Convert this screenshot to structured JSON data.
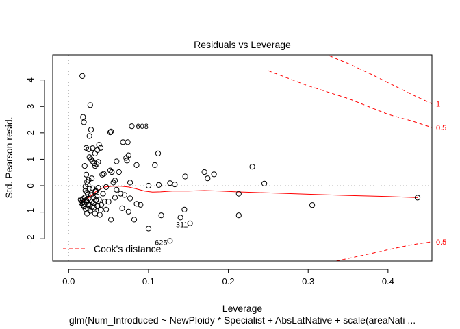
{
  "chart_data": {
    "type": "scatter",
    "title": "Residuals vs Leverage",
    "xlabel": "Leverage",
    "ylabel": "Std. Pearson resid.",
    "subtitle": "glm(Num_Introduced ~ NewPloidy * Specialist + AbsLatNative + scale(areaNati ...",
    "xlim": [
      -0.02,
      0.455
    ],
    "ylim": [
      -2.85,
      4.95
    ],
    "x_ticks": [
      0.0,
      0.1,
      0.2,
      0.3,
      0.4
    ],
    "x_tick_labels": [
      "0.0",
      "0.1",
      "0.2",
      "0.3",
      "0.4"
    ],
    "y_ticks": [
      -2,
      -1,
      0,
      1,
      2,
      3,
      4
    ],
    "y_tick_labels": [
      "-2",
      "-1",
      "0",
      "1",
      "2",
      "3",
      "4"
    ],
    "points": [
      [
        0.017,
        4.15
      ],
      [
        0.018,
        2.6
      ],
      [
        0.019,
        2.4
      ],
      [
        0.027,
        3.05
      ],
      [
        0.028,
        2.12
      ],
      [
        0.026,
        1.88
      ],
      [
        0.022,
        1.43
      ],
      [
        0.025,
        1.38
      ],
      [
        0.03,
        1.42
      ],
      [
        0.033,
        1.22
      ],
      [
        0.026,
        1.08
      ],
      [
        0.028,
        1.0
      ],
      [
        0.03,
        0.92
      ],
      [
        0.032,
        0.85
      ],
      [
        0.037,
        0.9
      ],
      [
        0.036,
        1.35
      ],
      [
        0.038,
        1.55
      ],
      [
        0.04,
        1.43
      ],
      [
        0.02,
        0.75
      ],
      [
        0.022,
        0.42
      ],
      [
        0.023,
        0.15
      ],
      [
        0.024,
        0.05
      ],
      [
        0.021,
        -0.03
      ],
      [
        0.025,
        0.22
      ],
      [
        0.029,
        0.28
      ],
      [
        0.035,
        0.82
      ],
      [
        0.033,
        0.75
      ],
      [
        0.042,
        0.42
      ],
      [
        0.044,
        0.45
      ],
      [
        0.047,
        -0.05
      ],
      [
        0.052,
        2.02
      ],
      [
        0.053,
        2.05
      ],
      [
        0.052,
        0.58
      ],
      [
        0.054,
        0.52
      ],
      [
        0.056,
        0.12
      ],
      [
        0.058,
        0.2
      ],
      [
        0.06,
        0.92
      ],
      [
        0.063,
        0.52
      ],
      [
        0.068,
        1.65
      ],
      [
        0.072,
        1.05
      ],
      [
        0.074,
        1.65
      ],
      [
        0.075,
        1.15
      ],
      [
        0.073,
        0.95
      ],
      [
        0.079,
        2.25
      ],
      [
        0.077,
        0.12
      ],
      [
        0.085,
        0.78
      ],
      [
        0.1,
        0.0
      ],
      [
        0.112,
        1.22
      ],
      [
        0.108,
        0.78
      ],
      [
        0.113,
        0.03
      ],
      [
        0.127,
        0.1
      ],
      [
        0.133,
        0.05
      ],
      [
        0.146,
        0.35
      ],
      [
        0.17,
        0.52
      ],
      [
        0.174,
        0.28
      ],
      [
        0.182,
        0.43
      ],
      [
        0.213,
        -0.3
      ],
      [
        0.23,
        0.72
      ],
      [
        0.245,
        0.08
      ],
      [
        0.213,
        -1.12
      ],
      [
        0.305,
        -0.73
      ],
      [
        0.437,
        -0.45
      ],
      [
        0.145,
        -0.9
      ],
      [
        0.14,
        -1.2
      ],
      [
        0.152,
        -1.42
      ],
      [
        0.116,
        -1.12
      ],
      [
        0.1,
        -1.62
      ],
      [
        0.127,
        -2.08
      ],
      [
        0.09,
        -0.72
      ],
      [
        0.085,
        -0.68
      ],
      [
        0.082,
        -1.28
      ],
      [
        0.077,
        -0.48
      ],
      [
        0.075,
        -0.98
      ],
      [
        0.07,
        -0.35
      ],
      [
        0.067,
        -0.85
      ],
      [
        0.065,
        -0.3
      ],
      [
        0.06,
        -0.15
      ],
      [
        0.058,
        -0.45
      ],
      [
        0.053,
        -1.28
      ],
      [
        0.05,
        -0.6
      ],
      [
        0.047,
        -0.9
      ],
      [
        0.045,
        -0.6
      ],
      [
        0.043,
        -0.3
      ],
      [
        0.041,
        -0.72
      ],
      [
        0.04,
        -0.92
      ],
      [
        0.039,
        -1.1
      ],
      [
        0.038,
        -0.52
      ],
      [
        0.037,
        -0.08
      ],
      [
        0.036,
        -0.75
      ],
      [
        0.035,
        -0.4
      ],
      [
        0.034,
        -0.2
      ],
      [
        0.033,
        -1.05
      ],
      [
        0.032,
        -0.82
      ],
      [
        0.031,
        -0.45
      ],
      [
        0.03,
        -0.1
      ],
      [
        0.029,
        -0.6
      ],
      [
        0.028,
        -0.35
      ],
      [
        0.027,
        -0.95
      ],
      [
        0.026,
        -0.12
      ],
      [
        0.025,
        -0.72
      ],
      [
        0.025,
        -0.48
      ],
      [
        0.024,
        -0.85
      ],
      [
        0.023,
        -1.05
      ],
      [
        0.023,
        -0.25
      ],
      [
        0.022,
        -0.6
      ],
      [
        0.022,
        -0.55
      ],
      [
        0.021,
        -0.88
      ],
      [
        0.02,
        -0.68
      ],
      [
        0.02,
        -0.45
      ],
      [
        0.019,
        -0.78
      ],
      [
        0.019,
        -0.62
      ],
      [
        0.018,
        -0.5
      ],
      [
        0.018,
        -0.72
      ],
      [
        0.017,
        -0.6
      ],
      [
        0.016,
        -0.55
      ],
      [
        0.016,
        -0.65
      ],
      [
        0.015,
        -0.52
      ],
      [
        0.027,
        -0.72
      ],
      [
        0.031,
        -0.65
      ],
      [
        0.034,
        -0.55
      ],
      [
        0.036,
        -0.78
      ],
      [
        0.029,
        -0.8
      ],
      [
        0.024,
        -0.32
      ],
      [
        0.021,
        -0.18
      ],
      [
        0.033,
        -0.22
      ]
    ],
    "point_labels": [
      {
        "x": 0.079,
        "y": 2.25,
        "text": "608",
        "side": "right"
      },
      {
        "x": 0.14,
        "y": -1.2,
        "text": "311",
        "side": "below-left"
      },
      {
        "x": 0.127,
        "y": -2.08,
        "text": "625",
        "side": "left"
      }
    ],
    "smooth_line": [
      [
        0.015,
        -0.6
      ],
      [
        0.025,
        -0.45
      ],
      [
        0.035,
        -0.2
      ],
      [
        0.045,
        -0.05
      ],
      [
        0.055,
        -0.02
      ],
      [
        0.065,
        -0.02
      ],
      [
        0.075,
        -0.05
      ],
      [
        0.085,
        -0.12
      ],
      [
        0.095,
        -0.2
      ],
      [
        0.105,
        -0.24
      ],
      [
        0.115,
        -0.23
      ],
      [
        0.13,
        -0.2
      ],
      [
        0.15,
        -0.2
      ],
      [
        0.17,
        -0.18
      ],
      [
        0.19,
        -0.2
      ],
      [
        0.21,
        -0.23
      ],
      [
        0.25,
        -0.27
      ],
      [
        0.3,
        -0.32
      ],
      [
        0.35,
        -0.37
      ],
      [
        0.4,
        -0.41
      ],
      [
        0.437,
        -0.45
      ]
    ],
    "cooks_curves": [
      {
        "level": 1,
        "sign": 1,
        "label": "1",
        "points": [
          [
            0.29,
            5.3
          ],
          [
            0.32,
            5.0
          ],
          [
            0.35,
            4.62
          ],
          [
            0.38,
            4.2
          ],
          [
            0.41,
            3.75
          ],
          [
            0.43,
            3.45
          ],
          [
            0.455,
            3.1
          ]
        ]
      },
      {
        "level": 0.5,
        "sign": 1,
        "label": "0.5",
        "points": [
          [
            0.25,
            4.35
          ],
          [
            0.3,
            3.78
          ],
          [
            0.35,
            3.3
          ],
          [
            0.4,
            2.7
          ],
          [
            0.43,
            2.45
          ],
          [
            0.455,
            2.2
          ]
        ]
      },
      {
        "level": 0.5,
        "sign": -1,
        "label": "0.5",
        "points": [
          [
            0.335,
            -2.85
          ],
          [
            0.37,
            -2.62
          ],
          [
            0.4,
            -2.42
          ],
          [
            0.43,
            -2.23
          ],
          [
            0.455,
            -2.12
          ]
        ]
      }
    ],
    "legend": {
      "label": "Cook's distance",
      "position": "bottom-left"
    }
  }
}
